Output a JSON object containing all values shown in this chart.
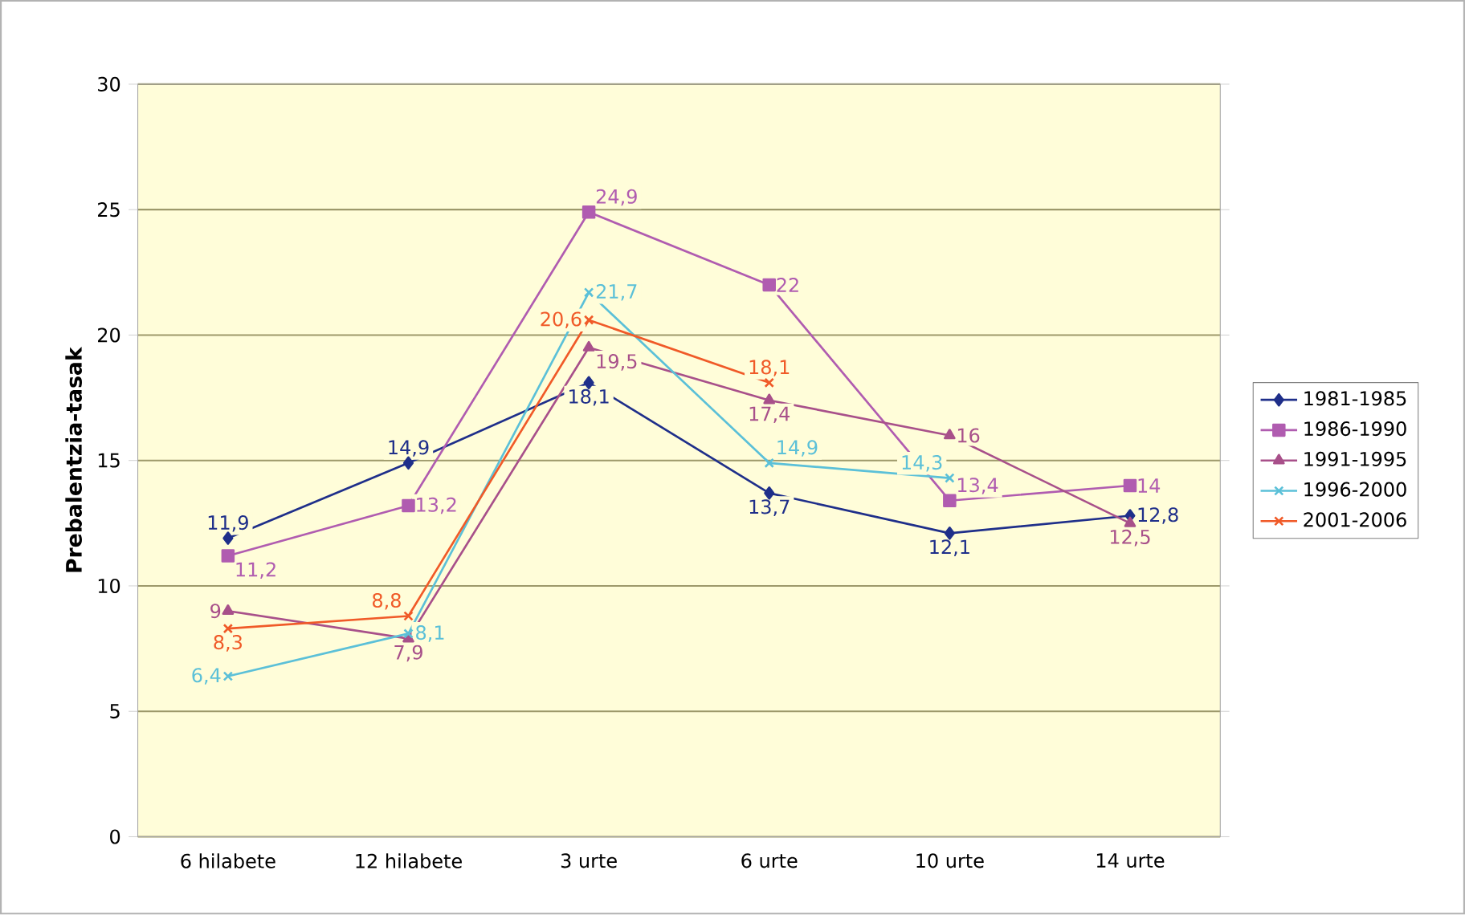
{
  "chart_data": {
    "type": "line",
    "ylabel": "Prebalentzia-tasak",
    "categories": [
      "6 hilabete",
      "12 hilabete",
      "3 urte",
      "6 urte",
      "10 urte",
      "14 urte"
    ],
    "series": [
      {
        "name": "1981-1985",
        "color": "#1f2f8a",
        "marker": "diamond",
        "values": [
          11.9,
          14.9,
          18.1,
          13.7,
          12.1,
          12.8
        ],
        "value_labels": [
          "11,9",
          "14,9",
          "18,1",
          "13,7",
          "12,1",
          "12,8"
        ]
      },
      {
        "name": "1986-1990",
        "color": "#b05cb0",
        "marker": "square",
        "values": [
          11.2,
          13.2,
          24.9,
          22,
          13.4,
          14
        ],
        "value_labels": [
          "11,2",
          "13,2",
          "24,9",
          "22",
          "13,4",
          "14"
        ]
      },
      {
        "name": "1991-1995",
        "color": "#a8508a",
        "marker": "triangle",
        "values": [
          9,
          7.9,
          19.5,
          17.4,
          16,
          12.5
        ],
        "value_labels": [
          "9",
          "7,9",
          "19,5",
          "17,4",
          "16",
          "12,5"
        ]
      },
      {
        "name": "1996-2000",
        "color": "#5bc0d8",
        "marker": "cross",
        "values": [
          6.4,
          8.1,
          21.7,
          14.9,
          14.3,
          null
        ],
        "value_labels": [
          "6,4",
          "8,1",
          "21,7",
          "14,9",
          "14,3",
          null
        ]
      },
      {
        "name": "2001-2006",
        "color": "#f05a28",
        "marker": "cross",
        "values": [
          8.3,
          8.8,
          20.6,
          18.1,
          null,
          null
        ],
        "value_labels": [
          "8,3",
          "8,8",
          "20,6",
          "18,1",
          null,
          null
        ]
      }
    ],
    "ylim": [
      0,
      30
    ],
    "yticks": [
      0,
      5,
      10,
      15,
      20,
      25,
      30
    ],
    "grid": "y",
    "legend": "right"
  }
}
